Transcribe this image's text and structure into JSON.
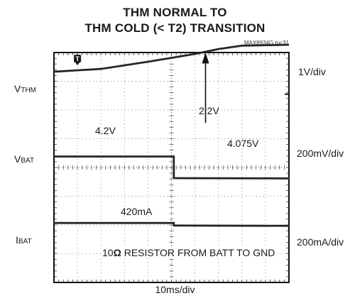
{
  "title_line1": "THM NORMAL TO",
  "title_line2": "THM COLD (< T2) TRANSITION",
  "figure_code": "MAX8934G toc31",
  "channels": [
    {
      "main": "V",
      "sub": "THM",
      "scale": "1V/div"
    },
    {
      "main": "V",
      "sub": "BAT",
      "scale": "200mV/div"
    },
    {
      "main": "I",
      "sub": "BAT",
      "scale": "200mA/div"
    }
  ],
  "x_scale": "10ms/div",
  "annotations": {
    "vthm_value": "2.2V",
    "vbat_before": "4.2V",
    "vbat_after": "4.075V",
    "ibat_value": "420mA",
    "note_pre": "10",
    "note_ohm": "Ω",
    "note_post": " RESISTOR FROM BATT TO GND"
  },
  "trigger_marker": "T",
  "chart_data": {
    "type": "line",
    "title": "THM NORMAL TO THM COLD (< T2) TRANSITION",
    "x_divisions": 10,
    "y_divisions": 8,
    "x_per_div": "10ms/div",
    "grid": true,
    "series": [
      {
        "name": "VTHM",
        "scale": "1V/div",
        "points_div": [
          [
            0,
            7.33
          ],
          [
            2,
            7.43
          ],
          [
            4,
            7.68
          ],
          [
            6,
            7.95
          ],
          [
            7,
            8.12
          ],
          [
            8,
            8.24
          ],
          [
            10,
            8.27
          ]
        ]
      },
      {
        "name": "VBAT",
        "scale": "200mV/div",
        "points_div": [
          [
            0,
            4.38
          ],
          [
            5.1,
            4.38
          ],
          [
            5.1,
            3.63
          ],
          [
            10,
            3.62
          ]
        ]
      },
      {
        "name": "IBAT",
        "scale": "200mA/div",
        "points_div": [
          [
            0,
            2.07
          ],
          [
            5.1,
            2.07
          ],
          [
            5.1,
            1.98
          ],
          [
            10,
            1.97
          ]
        ]
      }
    ]
  }
}
